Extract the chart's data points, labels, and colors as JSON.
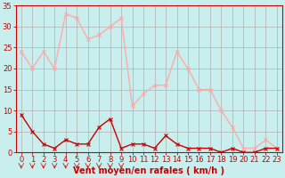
{
  "x": [
    0,
    1,
    2,
    3,
    4,
    5,
    6,
    7,
    8,
    9,
    10,
    11,
    12,
    13,
    14,
    15,
    16,
    17,
    18,
    19,
    20,
    21,
    22,
    23
  ],
  "wind_avg": [
    9,
    5,
    2,
    1,
    3,
    2,
    2,
    6,
    8,
    1,
    2,
    2,
    1,
    4,
    2,
    1,
    1,
    1,
    0,
    1,
    0,
    0,
    1,
    1
  ],
  "wind_gust": [
    24,
    20,
    24,
    20,
    33,
    32,
    27,
    28,
    30,
    32,
    11,
    14,
    16,
    16,
    24,
    20,
    15,
    15,
    10,
    6,
    1,
    1,
    3,
    1
  ],
  "avg_color": "#cc0000",
  "gust_color": "#ffaaaa",
  "background_color": "#c8eeed",
  "grid_color": "#b0b0b0",
  "xlabel": "Vent moyen/en rafales ( km/h )",
  "ylim": [
    0,
    35
  ],
  "yticks": [
    0,
    5,
    10,
    15,
    20,
    25,
    30,
    35
  ],
  "xlim": [
    -0.5,
    23.5
  ],
  "axis_fontsize": 7,
  "tick_fontsize": 6,
  "marker_size": 3,
  "linewidth": 1.0
}
